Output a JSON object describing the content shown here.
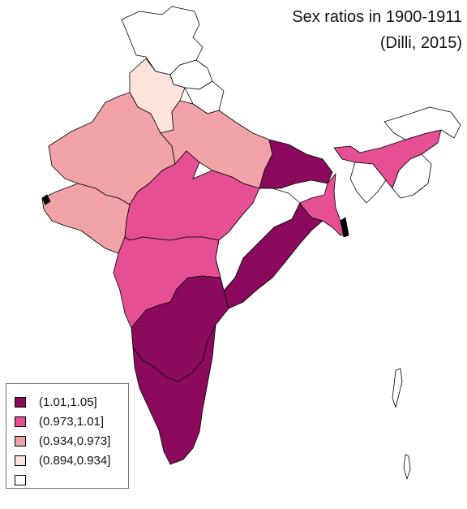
{
  "title": "Sex ratios in 1900-1911",
  "subtitle": "(Dilli, 2015)",
  "colors": {
    "class1": "#8b0a5e",
    "class2": "#e64f94",
    "class3": "#f1a3a8",
    "class4": "#fde3dc",
    "nodata": "#ffffff",
    "border": "#000000"
  },
  "legend": [
    {
      "label": "(1.01,1.05]",
      "color": "#8b0a5e"
    },
    {
      "label": "(0.973,1.01]",
      "color": "#e64f94"
    },
    {
      "label": "(0.934,0.973]",
      "color": "#f1a3a8"
    },
    {
      "label": "(0.894,0.934]",
      "color": "#fde3dc"
    },
    {
      "label": "",
      "color": "#ffffff"
    }
  ]
}
